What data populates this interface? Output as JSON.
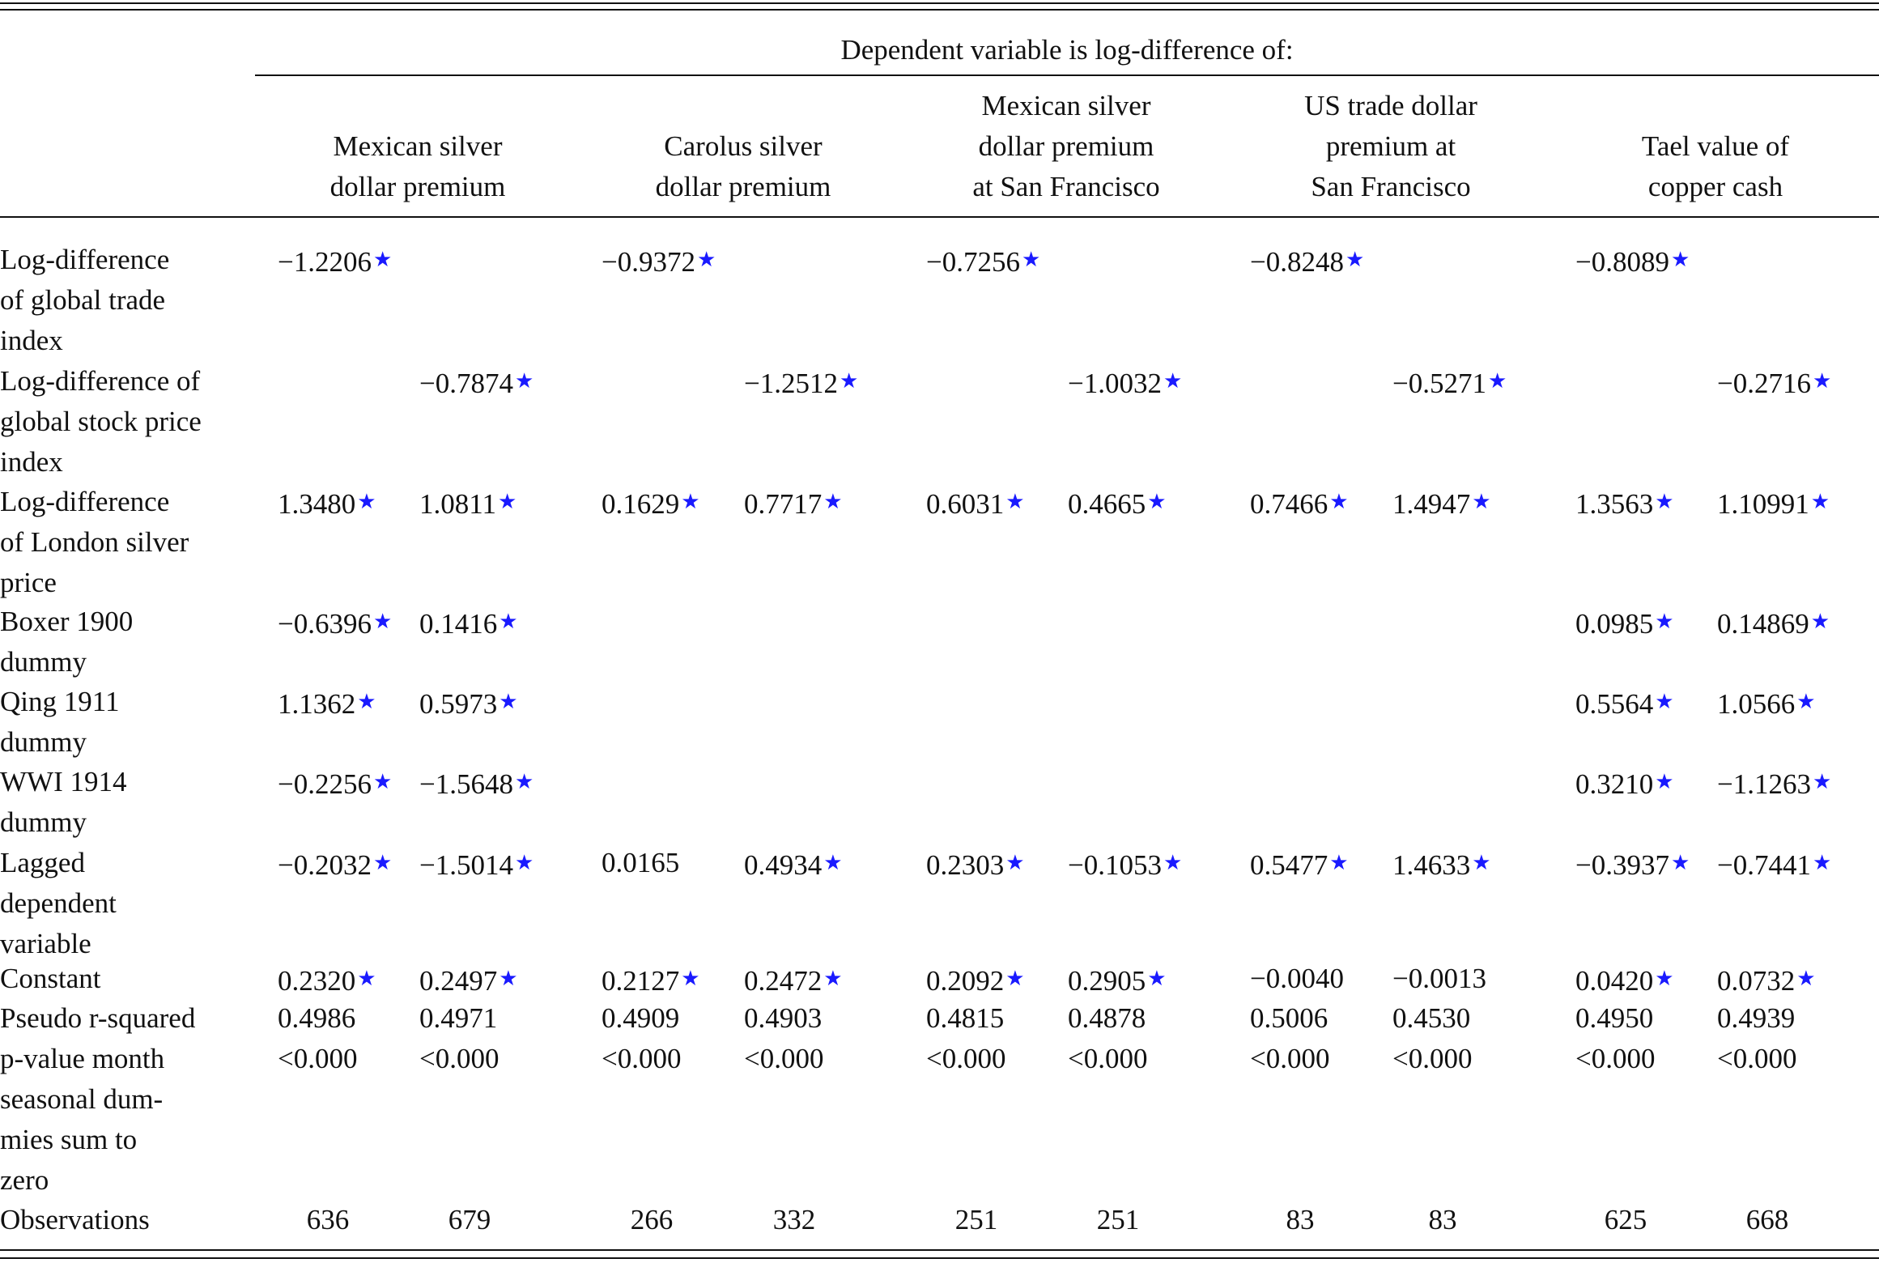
{
  "header": {
    "title": "Dependent variable is log-difference of:",
    "columns": [
      {
        "lines": [
          "Mexican silver",
          "dollar premium"
        ]
      },
      {
        "lines": [
          "Carolus silver",
          "dollar premium"
        ]
      },
      {
        "lines": [
          "Mexican silver",
          "dollar premium",
          "at San Francisco"
        ]
      },
      {
        "lines": [
          "US trade dollar",
          "premium at",
          "San Francisco"
        ]
      },
      {
        "lines": [
          "Tael value of",
          "copper cash"
        ]
      }
    ]
  },
  "table": {
    "rows": [
      {
        "label": [
          "Log-difference",
          "of global trade",
          "index"
        ],
        "cells": [
          {
            "text": "−1.2206",
            "mark": "★"
          },
          null,
          {
            "text": "−0.9372",
            "mark": "★"
          },
          null,
          {
            "text": "−0.7256",
            "mark": "★"
          },
          null,
          {
            "text": "−0.8248",
            "mark": "★"
          },
          null,
          {
            "text": "−0.8089",
            "mark": "★"
          },
          null
        ]
      },
      {
        "label": [
          "Log-difference of",
          "global stock price",
          "index"
        ],
        "cells": [
          null,
          {
            "text": "−0.7874",
            "mark": "★"
          },
          null,
          {
            "text": "−1.2512",
            "mark": "★"
          },
          null,
          {
            "text": "−1.0032",
            "mark": "★"
          },
          null,
          {
            "text": "−0.5271",
            "mark": "★"
          },
          null,
          {
            "text": "−0.2716",
            "mark": "★"
          }
        ]
      },
      {
        "label": [
          "Log-difference",
          "of London silver",
          "price"
        ],
        "cells": [
          {
            "text": "1.3480",
            "mark": "★"
          },
          {
            "text": "1.0811",
            "mark": "★"
          },
          {
            "text": "0.1629",
            "mark": "★"
          },
          {
            "text": "0.7717",
            "mark": "★"
          },
          {
            "text": "0.6031",
            "mark": "★"
          },
          {
            "text": "0.4665",
            "mark": "★"
          },
          {
            "text": "0.7466",
            "mark": "★"
          },
          {
            "text": "1.4947",
            "mark": "★"
          },
          {
            "text": "1.3563",
            "mark": "★"
          },
          {
            "text": "1.10991",
            "mark": "★"
          }
        ]
      },
      {
        "label": [
          "Boxer 1900",
          "dummy"
        ],
        "cells": [
          {
            "text": "−0.6396",
            "mark": "★"
          },
          {
            "text": "0.1416",
            "mark": "★"
          },
          null,
          null,
          null,
          null,
          null,
          null,
          {
            "text": "0.0985",
            "mark": "★"
          },
          {
            "text": "0.14869",
            "mark": "★"
          }
        ]
      },
      {
        "label": [
          "Qing 1911",
          "dummy"
        ],
        "cells": [
          {
            "text": "1.1362",
            "mark": "★"
          },
          {
            "text": "0.5973",
            "mark": "★"
          },
          null,
          null,
          null,
          null,
          null,
          null,
          {
            "text": "0.5564",
            "mark": "★"
          },
          {
            "text": "1.0566",
            "mark": "★"
          }
        ]
      },
      {
        "label": [
          "WWI 1914",
          "dummy"
        ],
        "cells": [
          {
            "text": "−0.2256",
            "mark": "★"
          },
          {
            "text": "−1.5648",
            "mark": "★"
          },
          null,
          null,
          null,
          null,
          null,
          null,
          {
            "text": "0.3210",
            "mark": "★"
          },
          {
            "text": "−1.1263",
            "mark": "★"
          }
        ]
      },
      {
        "label": [
          "Lagged",
          "dependent",
          "variable"
        ],
        "cells": [
          {
            "text": "−0.2032",
            "mark": "★"
          },
          {
            "text": "−1.5014",
            "mark": "★"
          },
          {
            "text": "0.0165"
          },
          {
            "text": "0.4934",
            "mark": "★"
          },
          {
            "text": "0.2303",
            "mark": "★"
          },
          {
            "text": "−0.1053",
            "mark": "★"
          },
          {
            "text": "0.5477",
            "mark": "★"
          },
          {
            "text": "1.4633",
            "mark": "★"
          },
          {
            "text": "−0.3937",
            "mark": "★"
          },
          {
            "text": "−0.7441",
            "mark": "★"
          }
        ]
      },
      {
        "label": [
          "Constant"
        ],
        "cells": [
          {
            "text": "0.2320",
            "mark": "★"
          },
          {
            "text": "0.2497",
            "mark": "★"
          },
          {
            "text": "0.2127",
            "mark": "★"
          },
          {
            "text": "0.2472",
            "mark": "★"
          },
          {
            "text": "0.2092",
            "mark": "★"
          },
          {
            "text": "0.2905",
            "mark": "★"
          },
          {
            "text": "−0.0040"
          },
          {
            "text": "−0.0013"
          },
          {
            "text": "0.0420",
            "mark": "★"
          },
          {
            "text": "0.0732",
            "mark": "★"
          }
        ]
      },
      {
        "label": [
          "Pseudo r-squared"
        ],
        "cells": [
          {
            "text": "0.4986"
          },
          {
            "text": "0.4971"
          },
          {
            "text": "0.4909"
          },
          {
            "text": "0.4903"
          },
          {
            "text": "0.4815"
          },
          {
            "text": "0.4878"
          },
          {
            "text": "0.5006"
          },
          {
            "text": "0.4530"
          },
          {
            "text": "0.4950"
          },
          {
            "text": "0.4939"
          }
        ]
      },
      {
        "label": [
          "p-value month",
          "seasonal dum-",
          "mies sum to",
          "zero"
        ],
        "cells": [
          {
            "text": "<0.000"
          },
          {
            "text": "<0.000"
          },
          {
            "text": "<0.000"
          },
          {
            "text": "<0.000"
          },
          {
            "text": "<0.000"
          },
          {
            "text": "<0.000"
          },
          {
            "text": "<0.000"
          },
          {
            "text": "<0.000"
          },
          {
            "text": "<0.000"
          },
          {
            "text": "<0.000"
          }
        ]
      },
      {
        "label": [
          "Observations"
        ],
        "cells": [
          {
            "text": "636"
          },
          {
            "text": "679"
          },
          {
            "text": "266"
          },
          {
            "text": "332"
          },
          {
            "text": "251"
          },
          {
            "text": "251"
          },
          {
            "text": "83"
          },
          {
            "text": "83"
          },
          {
            "text": "625"
          },
          {
            "text": "668"
          }
        ]
      }
    ]
  }
}
